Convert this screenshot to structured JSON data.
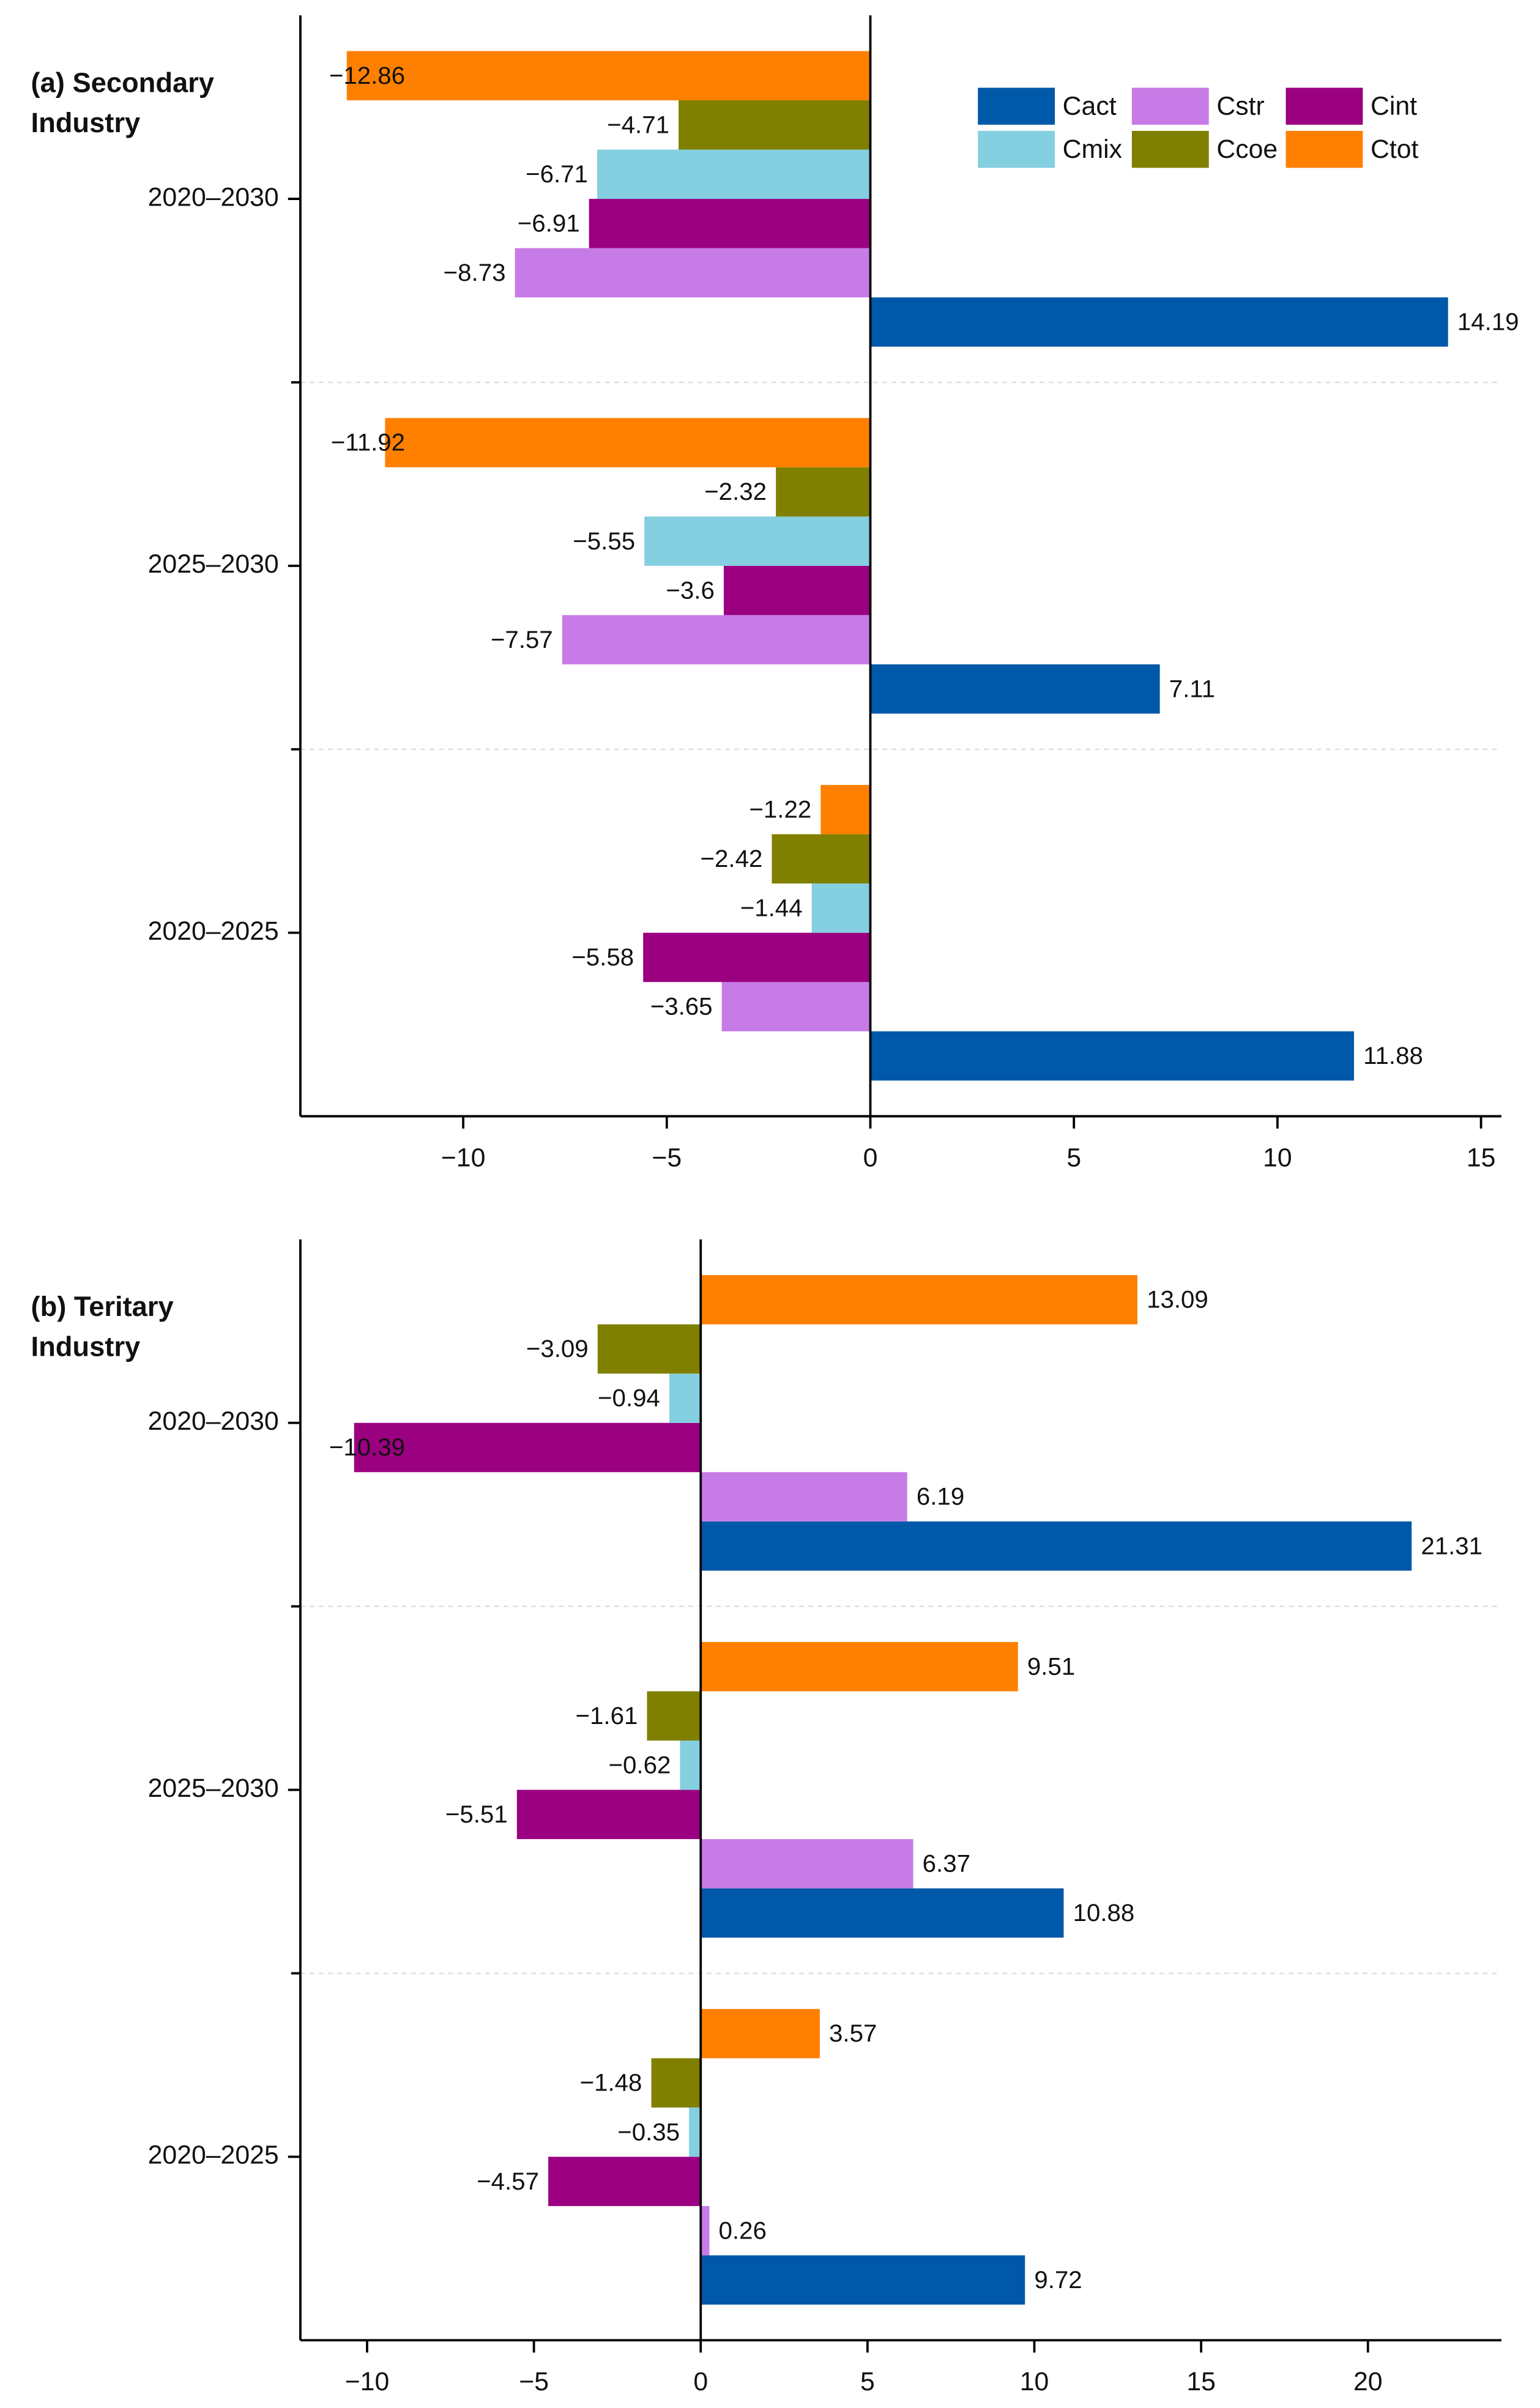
{
  "chart_data": [
    {
      "type": "bar",
      "orientation": "horizontal",
      "title": [
        "(a) Secondary",
        "Industry"
      ],
      "categories": [
        "2020–2030",
        "2025–2030",
        "2020–2025"
      ],
      "series": [
        {
          "name": "Cact",
          "color": "#0058a8",
          "values": [
            14.19,
            7.11,
            11.88
          ],
          "value_labels": [
            "14.19",
            "7.11",
            "11.88"
          ]
        },
        {
          "name": "Cstr",
          "color": "#c77be6",
          "values": [
            -8.73,
            -7.57,
            -3.65
          ],
          "value_labels": [
            "−8.73",
            "−7.57",
            "−3.65"
          ]
        },
        {
          "name": "Cint",
          "color": "#9a0080",
          "values": [
            -6.91,
            -3.6,
            -5.58
          ],
          "value_labels": [
            "−6.91",
            "−3.6",
            "−5.58"
          ]
        },
        {
          "name": "Cmix",
          "color": "#84cfe0",
          "values": [
            -6.71,
            -5.55,
            -1.44
          ],
          "value_labels": [
            "−6.71",
            "−5.55",
            "−1.44"
          ]
        },
        {
          "name": "Ccoe",
          "color": "#808000",
          "values": [
            -4.71,
            -2.32,
            -2.42
          ],
          "value_labels": [
            "−4.71",
            "−2.32",
            "−2.42"
          ]
        },
        {
          "name": "Ctot",
          "color": "#ff8000",
          "values": [
            -12.86,
            -11.92,
            -1.22
          ],
          "value_labels": [
            "−12.86",
            "−11.92",
            "−1.22"
          ]
        }
      ],
      "xlim": [
        -14,
        15.5
      ],
      "xticks": [
        {
          "value": -10,
          "label": "−10"
        },
        {
          "value": -5,
          "label": "−5"
        },
        0,
        5,
        10,
        15
      ],
      "legend": "upper right"
    },
    {
      "type": "bar",
      "orientation": "horizontal",
      "title": [
        "(b) Teritary",
        "Industry"
      ],
      "categories": [
        "2020–2030",
        "2025–2030",
        "2020–2025"
      ],
      "series": [
        {
          "name": "Cact",
          "color": "#0058a8",
          "values": [
            21.31,
            10.88,
            9.72
          ],
          "value_labels": [
            "21.31",
            "10.88",
            "9.72"
          ]
        },
        {
          "name": "Cstr",
          "color": "#c77be6",
          "values": [
            6.19,
            6.37,
            0.26
          ],
          "value_labels": [
            "6.19",
            "6.37",
            "0.26"
          ]
        },
        {
          "name": "Cint",
          "color": "#9a0080",
          "values": [
            -10.39,
            -5.51,
            -4.57
          ],
          "value_labels": [
            "−10.39",
            "−5.51",
            "−4.57"
          ]
        },
        {
          "name": "Cmix",
          "color": "#84cfe0",
          "values": [
            -0.94,
            -0.62,
            -0.35
          ],
          "value_labels": [
            "−0.94",
            "−0.62",
            "−0.35"
          ]
        },
        {
          "name": "Ccoe",
          "color": "#808000",
          "values": [
            -3.09,
            -1.61,
            -1.48
          ],
          "value_labels": [
            "−3.09",
            "−1.61",
            "−1.48"
          ]
        },
        {
          "name": "Ctot",
          "color": "#ff8000",
          "values": [
            13.09,
            9.51,
            3.57
          ],
          "value_labels": [
            "13.09",
            "9.51",
            "3.57"
          ]
        }
      ],
      "xlim": [
        -12,
        24
      ],
      "xticks": [
        {
          "value": -10,
          "label": "−10"
        },
        {
          "value": -5,
          "label": "−5"
        },
        0,
        5,
        10,
        15,
        20
      ]
    }
  ]
}
